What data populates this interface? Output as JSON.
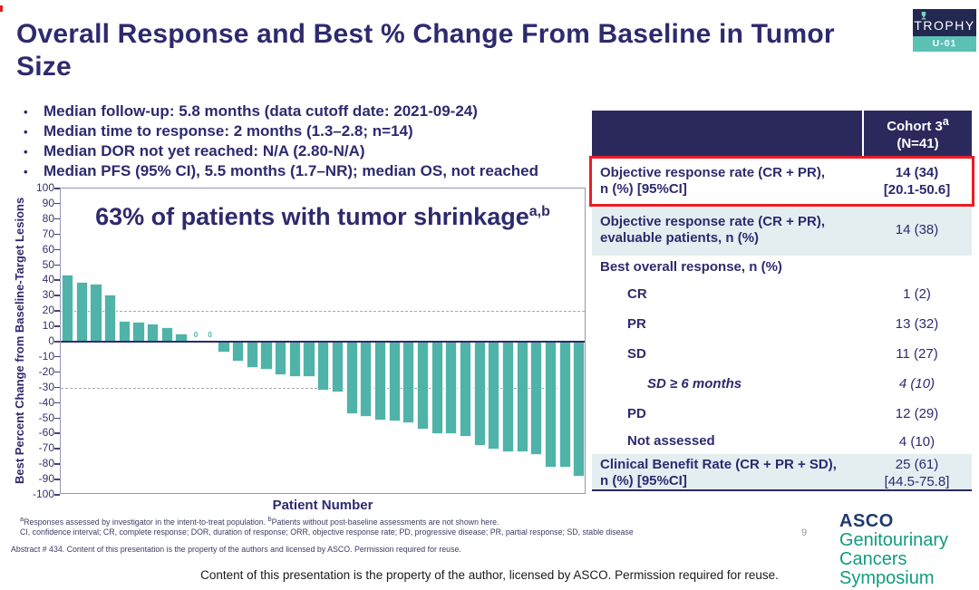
{
  "header": {
    "title": "Overall Response and Best % Change From Baseline in Tumor Size",
    "logo": {
      "name": "TROPHY",
      "cohort": "U-01"
    }
  },
  "bullets": [
    "Median follow-up: 5.8 months (data cutoff date: 2021-09-24)",
    "Median time to response: 2 months (1.3–2.8; n=14)",
    "Median DOR not yet reached: N/A (2.80-N/A)",
    "Median PFS (95% CI), 5.5 months (1.7–NR); median OS, not reached"
  ],
  "chart_data": {
    "type": "bar",
    "title": "63% of patients with tumor shrinkage",
    "title_superscript": "a,b",
    "xlabel": "Patient Number",
    "ylabel": "Best Percent Change from Baseline-Target Lesions",
    "ylim": [
      -100,
      100
    ],
    "ytick_step": 10,
    "grid": "off",
    "reference_lines_dashed": [
      20,
      -30
    ],
    "bar_color": "#4fb3a9",
    "zero_value_note": "bars with value 0 are drawn as small '0' text markers",
    "values": [
      43,
      38.5,
      37,
      30,
      13,
      12.5,
      11,
      9,
      4.5,
      0,
      0,
      -6,
      -12,
      -16,
      -17,
      -21,
      -22,
      -22,
      -31,
      -32,
      -46,
      -48,
      -50,
      -51,
      -52,
      -56,
      -59,
      -59,
      -61,
      -67,
      -69,
      -71,
      -71,
      -73,
      -81,
      -81,
      -87
    ]
  },
  "table": {
    "header": {
      "cohort_line1": "Cohort 3",
      "cohort_sup": "a",
      "cohort_line2": "(N=41)"
    },
    "rows": [
      {
        "label": "Objective response rate (CR + PR),\nn (%) [95%CI]",
        "value": "14 (34)\n[20.1-50.6]",
        "highlight": true,
        "value_bold": true
      },
      {
        "label": "Objective response rate (CR + PR),\nevaluable patients, n (%)",
        "value": "14 (38)",
        "shaded": true
      },
      {
        "label": "Best overall response, n (%)",
        "value": "",
        "section": true
      },
      {
        "label": "CR",
        "value": "1 (2)",
        "indent": 1
      },
      {
        "label": "PR",
        "value": "13 (32)",
        "indent": 1
      },
      {
        "label": "SD",
        "value": "11 (27)",
        "indent": 1
      },
      {
        "label": "SD ≥ 6 months",
        "value": "4 (10)",
        "indent": 2,
        "italic": true
      },
      {
        "label": "PD",
        "value": "12 (29)",
        "indent": 1
      },
      {
        "label": "Not assessed",
        "value": "4 (10)",
        "indent": 1
      },
      {
        "label": "Clinical Benefit Rate (CR + PR + SD),\nn (%) [95%CI]",
        "value": "25 (61)\n[44.5-75.8]",
        "shaded": true
      }
    ]
  },
  "footnotes": {
    "sup_a": "a",
    "note_a": "Responses assessed by investigator in the intent-to-treat population. ",
    "sup_b": "b",
    "note_b": "Patients without post-baseline assessments are not shown here.",
    "abbreviations": "CI, confidence interval; CR, complete response; DOR, duration of response; ORR, objective response rate; PD, progressive disease; PR, partial response; SD, stable disease",
    "abstract": "Abstract # 434. Content of this presentation is the property of the authors and licensed by ASCO. Permission required for reuse."
  },
  "footer": {
    "page_number": "9",
    "asco_logo": {
      "org": "ASCO",
      "line1": "Genitourinary",
      "line2": "Cancers Symposium"
    },
    "disclaimer": "Content of this presentation is the property of the author, licensed by ASCO. Permission required for reuse."
  }
}
